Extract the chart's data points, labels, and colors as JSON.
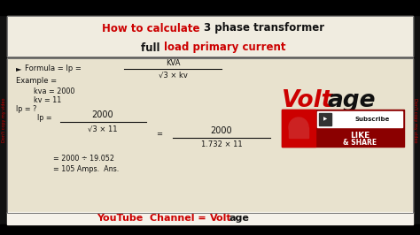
{
  "bg_color": "#111111",
  "header_bg": "#f0ece0",
  "content_bg": "#e8e2ce",
  "footer_bg": "#f5f2ea",
  "title_red": "How to calculate ",
  "title_black1": "3 phase transformer",
  "title_black2_pre": "full ",
  "title_red2": "load primary current",
  "formula_arrow": "►",
  "formula_label": "Formula = Ip =",
  "formula_num": "KVA",
  "formula_den": "√3 × kv",
  "example_label": "Example =",
  "kva_val": "kva = 2000",
  "kv_val": "kv = 11",
  "ip_q": "Ip = ?",
  "ip_label": "Ip =",
  "num1": "2000",
  "den1": "√3 × 11",
  "eq": "=",
  "num2": "2000",
  "den2": "1.732 × 11",
  "step1": "= 2000 ÷ 19.052",
  "step2": "= 105 Amps.  Ans.",
  "footer_text": "YouTube  Channel = ",
  "footer_volt": "Volt",
  "footer_age": "age",
  "watermark": "Don't copy my video",
  "red": "#cc0000",
  "black": "#111111",
  "white": "#ffffff"
}
